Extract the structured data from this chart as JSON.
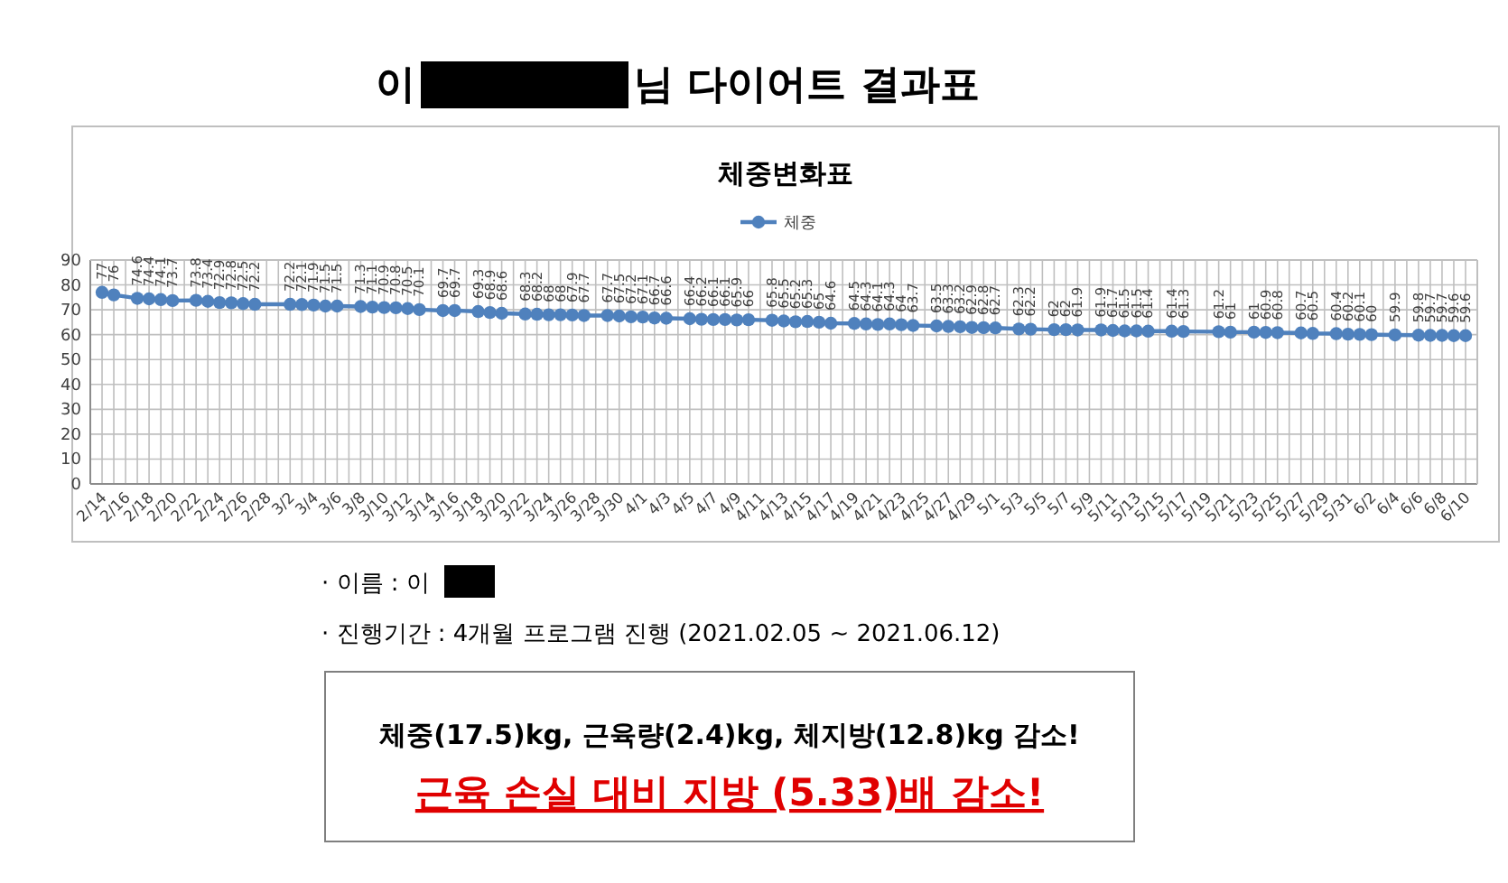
{
  "chart_data": {
    "type": "line",
    "title": "체중변화표",
    "x": [
      "--02-14",
      "--02-15",
      "--02-17",
      "--02-18",
      "--02-19",
      "--02-20",
      "--02-22",
      "--02-23",
      "--02-24",
      "--02-25",
      "--02-26",
      "--02-27",
      "--03-02",
      "--03-03",
      "--03-04",
      "--03-05",
      "--03-06",
      "--03-08",
      "--03-09",
      "--03-10",
      "--03-11",
      "--03-12",
      "--03-13",
      "--03-15",
      "--03-16",
      "--03-18",
      "--03-19",
      "--03-20",
      "--03-22",
      "--03-23",
      "--03-24",
      "--03-25",
      "--03-26",
      "--03-27",
      "--03-29",
      "--03-30",
      "--03-31",
      "--04-01",
      "--04-02",
      "--04-03",
      "--04-05",
      "--04-06",
      "--04-07",
      "--04-08",
      "--04-09",
      "--04-10",
      "--04-12",
      "--04-13",
      "--04-14",
      "--04-15",
      "--04-16",
      "--04-17",
      "--04-19",
      "--04-20",
      "--04-21",
      "--04-22",
      "--04-23",
      "--04-24",
      "--04-26",
      "--04-27",
      "--04-28",
      "--04-29",
      "--04-30",
      "--05-01",
      "--05-03",
      "--05-04",
      "--05-06",
      "--05-07",
      "--05-08",
      "--05-10",
      "--05-11",
      "--05-12",
      "--05-13",
      "--05-14",
      "--05-16",
      "--05-17",
      "--05-20",
      "--05-21",
      "--05-23",
      "--05-24",
      "--05-25",
      "--05-27",
      "--05-28",
      "--05-30",
      "--05-31",
      "--06-01",
      "--06-02",
      "--06-04",
      "--06-06",
      "--06-07",
      "--06-08",
      "--06-09",
      "--06-10"
    ],
    "series": [
      {
        "name": "체중",
        "color": "#4f81bd",
        "values": [
          77,
          76,
          74.6,
          74.4,
          74.1,
          73.7,
          73.8,
          73.4,
          72.9,
          72.8,
          72.5,
          72.2,
          72.2,
          72.1,
          71.9,
          71.5,
          71.5,
          71.3,
          71.1,
          70.9,
          70.8,
          70.5,
          70.1,
          69.7,
          69.7,
          69.3,
          68.9,
          68.6,
          68.3,
          68.2,
          68,
          68,
          67.9,
          67.7,
          67.7,
          67.5,
          67.2,
          67.1,
          66.7,
          66.6,
          66.4,
          66.2,
          66.1,
          66.1,
          65.9,
          66,
          65.8,
          65.5,
          65.2,
          65.3,
          65,
          64.6,
          64.5,
          64.3,
          64.1,
          64.3,
          64,
          63.7,
          63.5,
          63.3,
          63.2,
          62.9,
          62.8,
          62.7,
          62.3,
          62.2,
          62,
          62,
          61.9,
          61.9,
          61.7,
          61.5,
          61.5,
          61.4,
          61.4,
          61.3,
          61.2,
          61,
          61,
          60.9,
          60.8,
          60.7,
          60.5,
          60.4,
          60.2,
          60.1,
          60,
          59.9,
          59.8,
          59.7,
          59.7,
          59.6,
          59.6
        ]
      }
    ],
    "data_labels": true,
    "marker": "circle",
    "line_style": "solid",
    "legend": "top",
    "grid": true,
    "ylim": [
      0,
      90
    ],
    "yticks": [
      0,
      10,
      20,
      30,
      40,
      50,
      60,
      70,
      80,
      90
    ],
    "xlim": [
      "--02-13",
      "--06-11"
    ],
    "xticks": [
      {
        "value": "--02-14",
        "label": "2/14"
      },
      {
        "value": "--02-15",
        "label": null
      },
      {
        "value": "--02-16",
        "label": "2/16"
      },
      {
        "value": "--02-17",
        "label": null
      },
      {
        "value": "--02-18",
        "label": "2/18"
      },
      {
        "value": "--02-19",
        "label": null
      },
      {
        "value": "--02-20",
        "label": "2/20"
      },
      {
        "value": "--02-21",
        "label": null
      },
      {
        "value": "--02-22",
        "label": "2/22"
      },
      {
        "value": "--02-23",
        "label": null
      },
      {
        "value": "--02-24",
        "label": "2/24"
      },
      {
        "value": "--02-25",
        "label": null
      },
      {
        "value": "--02-26",
        "label": "2/26"
      },
      {
        "value": "--02-27",
        "label": null
      },
      {
        "value": "--02-28",
        "label": "2/28"
      },
      {
        "value": "--03-01",
        "label": null
      },
      {
        "value": "--03-02",
        "label": "3/2"
      },
      {
        "value": "--03-03",
        "label": null
      },
      {
        "value": "--03-04",
        "label": "3/4"
      },
      {
        "value": "--03-05",
        "label": null
      },
      {
        "value": "--03-06",
        "label": "3/6"
      },
      {
        "value": "--03-07",
        "label": null
      },
      {
        "value": "--03-08",
        "label": "3/8"
      },
      {
        "value": "--03-09",
        "label": null
      },
      {
        "value": "--03-10",
        "label": "3/10"
      },
      {
        "value": "--03-11",
        "label": null
      },
      {
        "value": "--03-12",
        "label": "3/12"
      },
      {
        "value": "--03-13",
        "label": null
      },
      {
        "value": "--03-14",
        "label": "3/14"
      },
      {
        "value": "--03-15",
        "label": null
      },
      {
        "value": "--03-16",
        "label": "3/16"
      },
      {
        "value": "--03-17",
        "label": null
      },
      {
        "value": "--03-18",
        "label": "3/18"
      },
      {
        "value": "--03-19",
        "label": null
      },
      {
        "value": "--03-20",
        "label": "3/20"
      },
      {
        "value": "--03-21",
        "label": null
      },
      {
        "value": "--03-22",
        "label": "3/22"
      },
      {
        "value": "--03-23",
        "label": null
      },
      {
        "value": "--03-24",
        "label": "3/24"
      },
      {
        "value": "--03-25",
        "label": null
      },
      {
        "value": "--03-26",
        "label": "3/26"
      },
      {
        "value": "--03-27",
        "label": null
      },
      {
        "value": "--03-28",
        "label": "3/28"
      },
      {
        "value": "--03-29",
        "label": null
      },
      {
        "value": "--03-30",
        "label": "3/30"
      },
      {
        "value": "--03-31",
        "label": null
      },
      {
        "value": "--04-01",
        "label": "4/1"
      },
      {
        "value": "--04-02",
        "label": null
      },
      {
        "value": "--04-03",
        "label": "4/3"
      },
      {
        "value": "--04-04",
        "label": null
      },
      {
        "value": "--04-05",
        "label": "4/5"
      },
      {
        "value": "--04-06",
        "label": null
      },
      {
        "value": "--04-07",
        "label": "4/7"
      },
      {
        "value": "--04-08",
        "label": null
      },
      {
        "value": "--04-09",
        "label": "4/9"
      },
      {
        "value": "--04-10",
        "label": null
      },
      {
        "value": "--04-11",
        "label": "4/11"
      },
      {
        "value": "--04-12",
        "label": null
      },
      {
        "value": "--04-13",
        "label": "4/13"
      },
      {
        "value": "--04-14",
        "label": null
      },
      {
        "value": "--04-15",
        "label": "4/15"
      },
      {
        "value": "--04-16",
        "label": null
      },
      {
        "value": "--04-17",
        "label": "4/17"
      },
      {
        "value": "--04-18",
        "label": null
      },
      {
        "value": "--04-19",
        "label": "4/19"
      },
      {
        "value": "--04-20",
        "label": null
      },
      {
        "value": "--04-21",
        "label": "4/21"
      },
      {
        "value": "--04-22",
        "label": null
      },
      {
        "value": "--04-23",
        "label": "4/23"
      },
      {
        "value": "--04-24",
        "label": null
      },
      {
        "value": "--04-25",
        "label": "4/25"
      },
      {
        "value": "--04-26",
        "label": null
      },
      {
        "value": "--04-27",
        "label": "4/27"
      },
      {
        "value": "--04-28",
        "label": null
      },
      {
        "value": "--04-29",
        "label": "4/29"
      },
      {
        "value": "--04-30",
        "label": null
      },
      {
        "value": "--05-01",
        "label": "5/1"
      },
      {
        "value": "--05-02",
        "label": null
      },
      {
        "value": "--05-03",
        "label": "5/3"
      },
      {
        "value": "--05-04",
        "label": null
      },
      {
        "value": "--05-05",
        "label": "5/5"
      },
      {
        "value": "--05-06",
        "label": null
      },
      {
        "value": "--05-07",
        "label": "5/7"
      },
      {
        "value": "--05-08",
        "label": null
      },
      {
        "value": "--05-09",
        "label": "5/9"
      },
      {
        "value": "--05-10",
        "label": null
      },
      {
        "value": "--05-11",
        "label": "5/11"
      },
      {
        "value": "--05-12",
        "label": null
      },
      {
        "value": "--05-13",
        "label": "5/13"
      },
      {
        "value": "--05-14",
        "label": null
      },
      {
        "value": "--05-15",
        "label": "5/15"
      },
      {
        "value": "--05-16",
        "label": null
      },
      {
        "value": "--05-17",
        "label": "5/17"
      },
      {
        "value": "--05-18",
        "label": null
      },
      {
        "value": "--05-19",
        "label": "5/19"
      },
      {
        "value": "--05-20",
        "label": null
      },
      {
        "value": "--05-21",
        "label": "5/21"
      },
      {
        "value": "--05-22",
        "label": null
      },
      {
        "value": "--05-23",
        "label": "5/23"
      },
      {
        "value": "--05-24",
        "label": null
      },
      {
        "value": "--05-25",
        "label": "5/25"
      },
      {
        "value": "--05-26",
        "label": null
      },
      {
        "value": "--05-27",
        "label": "5/27"
      },
      {
        "value": "--05-28",
        "label": null
      },
      {
        "value": "--05-29",
        "label": "5/29"
      },
      {
        "value": "--05-30",
        "label": null
      },
      {
        "value": "--05-31",
        "label": "5/31"
      },
      {
        "value": "--06-01",
        "label": null
      },
      {
        "value": "--06-02",
        "label": "6/2"
      },
      {
        "value": "--06-03",
        "label": null
      },
      {
        "value": "--06-04",
        "label": "6/4"
      },
      {
        "value": "--06-05",
        "label": null
      },
      {
        "value": "--06-06",
        "label": "6/6"
      },
      {
        "value": "--06-07",
        "label": null
      },
      {
        "value": "--06-08",
        "label": "6/8"
      },
      {
        "value": "--06-09",
        "label": null
      },
      {
        "value": "--06-10",
        "label": "6/10"
      }
    ],
    "annotations": [
      "이",
      "님 다이어트 결과표",
      "· 이름 : 이",
      "· 진행기간 : 4개월 프로그램 진행 (2021.02.05 ~ 2021.06.12)",
      "체중(17.5)kg, 근육량(2.4)kg, 체지방(12.8)kg 감소!",
      "근육 손실 대비 지방 (5.33)배 감소!"
    ]
  }
}
